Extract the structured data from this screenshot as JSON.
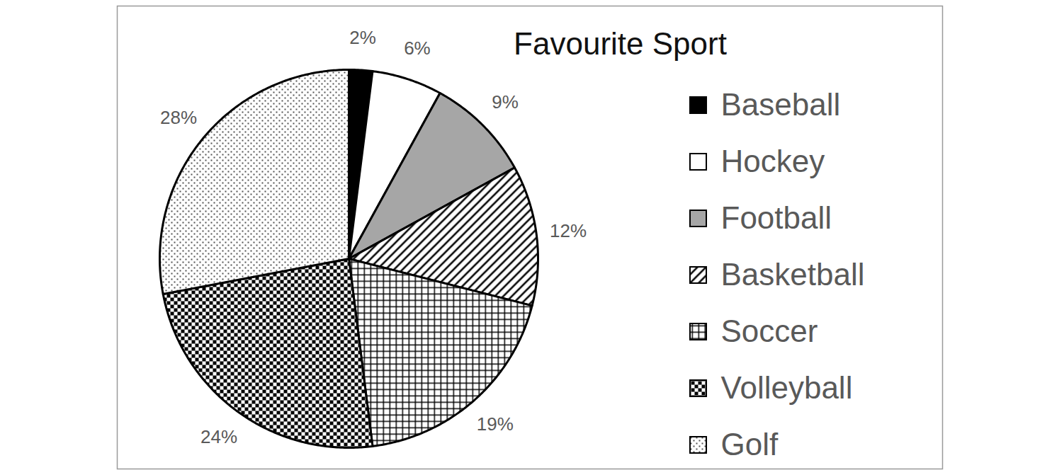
{
  "chart_data": {
    "type": "pie",
    "title": "Favourite Sport",
    "categories": [
      "Baseball",
      "Hockey",
      "Football",
      "Basketball",
      "Soccer",
      "Volleyball",
      "Golf"
    ],
    "values": [
      2,
      6,
      9,
      12,
      19,
      24,
      28
    ],
    "value_labels": [
      "2%",
      "6%",
      "9%",
      "12%",
      "19%",
      "24%",
      "28%"
    ],
    "colors": [
      "#000000",
      "#ffffff",
      "#a6a6a6",
      "#ffffff",
      "#ffffff",
      "#ffffff",
      "#ffffff"
    ],
    "data_labels": true,
    "legend": "right"
  }
}
